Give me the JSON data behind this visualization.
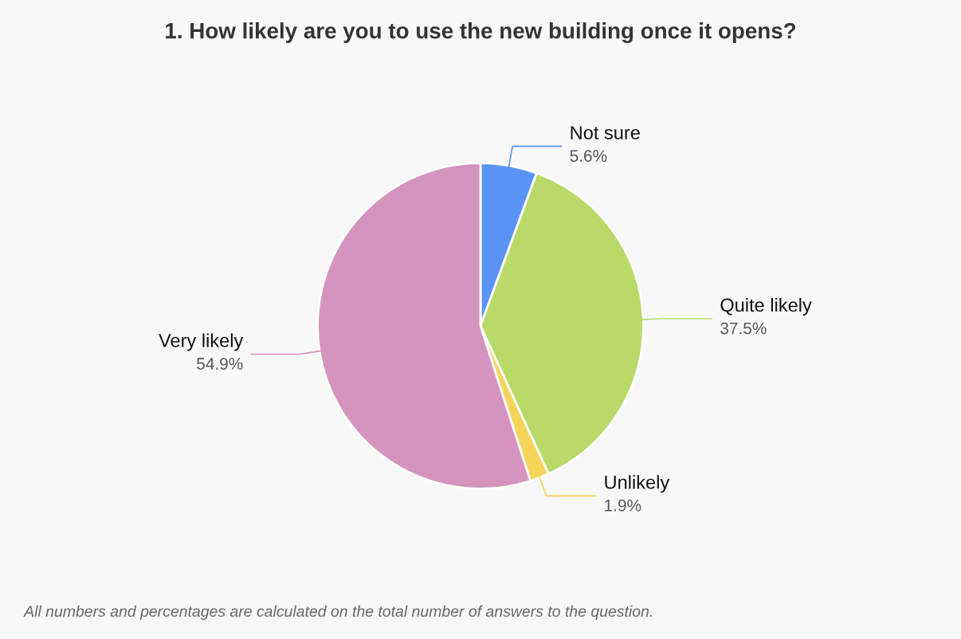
{
  "chart_data": {
    "type": "pie",
    "title": "1. How likely are you to use the new building once it opens?",
    "categories": [
      "Not sure",
      "Quite likely",
      "Unlikely",
      "Very likely"
    ],
    "values": [
      5.6,
      37.5,
      1.9,
      54.9
    ],
    "colors": [
      "#5b93f5",
      "#b8da68",
      "#f5d45a",
      "#d494be"
    ],
    "value_labels": [
      "5.6%",
      "37.5%",
      "1.9%",
      "54.9%"
    ],
    "annotations": [
      "All numbers and percentages are calculated on the total number of answers to the question."
    ],
    "legend": false
  }
}
